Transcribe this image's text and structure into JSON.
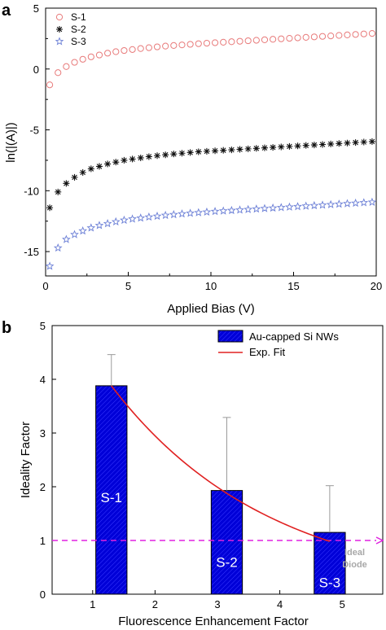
{
  "chart_data": [
    {
      "panel": "a",
      "type": "scatter",
      "xlabel": "Applied Bias (V)",
      "ylabel": "ln(|(A)|)",
      "xlim": [
        0,
        20
      ],
      "ylim": [
        -17,
        5
      ],
      "xticks": [
        0,
        5,
        10,
        15,
        20
      ],
      "yticks": [
        5,
        0,
        -5,
        -10,
        -15
      ],
      "legend_position": "top-left",
      "series": [
        {
          "name": "S-1",
          "marker": "circle",
          "color": "#e87a7a",
          "x": [
            0.25,
            0.75,
            1.25,
            1.75,
            2.25,
            2.75,
            3.25,
            3.75,
            4.25,
            4.75,
            5.25,
            5.75,
            6.25,
            6.75,
            7.25,
            7.75,
            8.25,
            8.75,
            9.25,
            9.75,
            10.25,
            10.75,
            11.25,
            11.75,
            12.25,
            12.75,
            13.25,
            13.75,
            14.25,
            14.75,
            15.25,
            15.75,
            16.25,
            16.75,
            17.25,
            17.75,
            18.25,
            18.75,
            19.25,
            19.75
          ],
          "y": [
            -1.3,
            -0.3,
            0.2,
            0.55,
            0.8,
            1.0,
            1.15,
            1.3,
            1.42,
            1.52,
            1.6,
            1.68,
            1.75,
            1.82,
            1.88,
            1.93,
            1.98,
            2.03,
            2.08,
            2.12,
            2.16,
            2.2,
            2.24,
            2.28,
            2.32,
            2.36,
            2.4,
            2.44,
            2.48,
            2.52,
            2.56,
            2.6,
            2.64,
            2.68,
            2.72,
            2.76,
            2.8,
            2.84,
            2.88,
            2.92
          ]
        },
        {
          "name": "S-2",
          "marker": "asterisk",
          "color": "#111111",
          "x": [
            0.25,
            0.75,
            1.25,
            1.75,
            2.25,
            2.75,
            3.25,
            3.75,
            4.25,
            4.75,
            5.25,
            5.75,
            6.25,
            6.75,
            7.25,
            7.75,
            8.25,
            8.75,
            9.25,
            9.75,
            10.25,
            10.75,
            11.25,
            11.75,
            12.25,
            12.75,
            13.25,
            13.75,
            14.25,
            14.75,
            15.25,
            15.75,
            16.25,
            16.75,
            17.25,
            17.75,
            18.25,
            18.75,
            19.25,
            19.75
          ],
          "y": [
            -11.4,
            -10.1,
            -9.4,
            -8.9,
            -8.5,
            -8.2,
            -8.0,
            -7.8,
            -7.65,
            -7.5,
            -7.4,
            -7.3,
            -7.2,
            -7.12,
            -7.05,
            -6.98,
            -6.92,
            -6.86,
            -6.8,
            -6.76,
            -6.72,
            -6.68,
            -6.64,
            -6.6,
            -6.56,
            -6.52,
            -6.48,
            -6.44,
            -6.4,
            -6.36,
            -6.32,
            -6.28,
            -6.24,
            -6.2,
            -6.16,
            -6.12,
            -6.08,
            -6.04,
            -6.0,
            -5.96
          ]
        },
        {
          "name": "S-3",
          "marker": "star",
          "color": "#6b7fd6",
          "x": [
            0.25,
            0.75,
            1.25,
            1.75,
            2.25,
            2.75,
            3.25,
            3.75,
            4.25,
            4.75,
            5.25,
            5.75,
            6.25,
            6.75,
            7.25,
            7.75,
            8.25,
            8.75,
            9.25,
            9.75,
            10.25,
            10.75,
            11.25,
            11.75,
            12.25,
            12.75,
            13.25,
            13.75,
            14.25,
            14.75,
            15.25,
            15.75,
            16.25,
            16.75,
            17.25,
            17.75,
            18.25,
            18.75,
            19.25,
            19.75
          ],
          "y": [
            -16.2,
            -14.7,
            -14.0,
            -13.6,
            -13.3,
            -13.05,
            -12.85,
            -12.7,
            -12.55,
            -12.42,
            -12.32,
            -12.24,
            -12.16,
            -12.09,
            -12.02,
            -11.96,
            -11.9,
            -11.85,
            -11.8,
            -11.75,
            -11.7,
            -11.66,
            -11.62,
            -11.58,
            -11.54,
            -11.5,
            -11.46,
            -11.42,
            -11.38,
            -11.34,
            -11.3,
            -11.26,
            -11.22,
            -11.18,
            -11.14,
            -11.1,
            -11.06,
            -11.02,
            -10.98,
            -10.94
          ]
        }
      ]
    },
    {
      "panel": "b",
      "type": "bar",
      "xlabel": "Fluorescence Enhancement Factor",
      "ylabel": "Ideality Factor",
      "xlim": [
        0.35,
        5.65
      ],
      "ylim": [
        0,
        5
      ],
      "xticks": [
        1,
        2,
        3,
        4,
        5
      ],
      "yticks": [
        0,
        1,
        2,
        3,
        4,
        5
      ],
      "legend_position": "top-right",
      "bars": {
        "name": "Au-capped Si NWs",
        "color": "#0000d8",
        "x": [
          1.3,
          3.15,
          4.8
        ],
        "width": 0.5,
        "values": [
          3.88,
          1.93,
          1.15
        ],
        "error_upper": [
          0.58,
          1.36,
          0.87
        ],
        "labels": [
          "S-1",
          "S-2",
          "S-3"
        ]
      },
      "fit": {
        "name": "Exp. Fit",
        "color": "#e02020",
        "a": 6.46,
        "k": 0.3923
      },
      "reference": {
        "y": 1.0,
        "color": "#e020e0",
        "label_line1": "Ideal",
        "label_line2": "Diode"
      }
    }
  ],
  "panel_letters": [
    "a",
    "b"
  ]
}
